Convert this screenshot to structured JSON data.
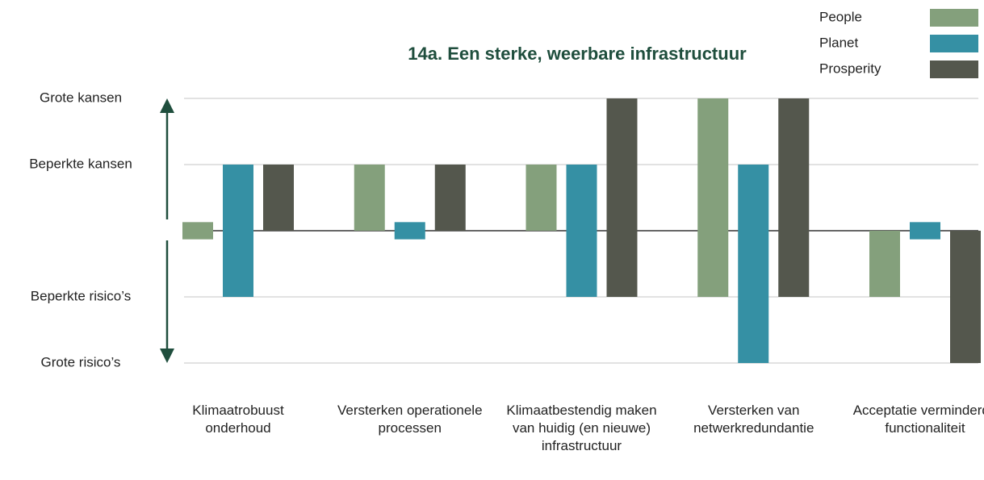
{
  "chart_data": {
    "type": "range-bar",
    "title": "14a. Een sterke, weerbare infrastructuur",
    "categories": [
      "Klimaatrobuust onderhoud",
      "Versterken operationele processen",
      "Klimaatbestendig maken van huidig (en nieuwe) infrastructuur",
      "Versterken van netwerkredundan­tie",
      "Acceptatie verminderde functionaliteit"
    ],
    "series": [
      {
        "name": "People",
        "color": "#84a07c",
        "values": [
          [
            0,
            0
          ],
          [
            0,
            1
          ],
          [
            0,
            1
          ],
          [
            -1,
            2
          ],
          [
            -1,
            0
          ]
        ]
      },
      {
        "name": "Planet",
        "color": "#3590a4",
        "values": [
          [
            -1,
            1
          ],
          [
            0,
            0
          ],
          [
            -1,
            1
          ],
          [
            -2,
            1
          ],
          [
            0,
            0
          ]
        ]
      },
      {
        "name": "Prosperity",
        "color": "#54574d",
        "values": [
          [
            0,
            1
          ],
          [
            0,
            1
          ],
          [
            -1,
            2
          ],
          [
            -1,
            2
          ],
          [
            -2,
            0
          ]
        ]
      }
    ],
    "ylim": [
      -2,
      2
    ],
    "yticks": [
      {
        "value": 2,
        "label": "Grote kansen"
      },
      {
        "value": 1,
        "label": "Beperkte kansen"
      },
      {
        "value": -1,
        "label": "Beperkte risico’s"
      },
      {
        "value": -2,
        "label": "Grote risico’s"
      }
    ],
    "grid": true,
    "legend": "top-right"
  }
}
